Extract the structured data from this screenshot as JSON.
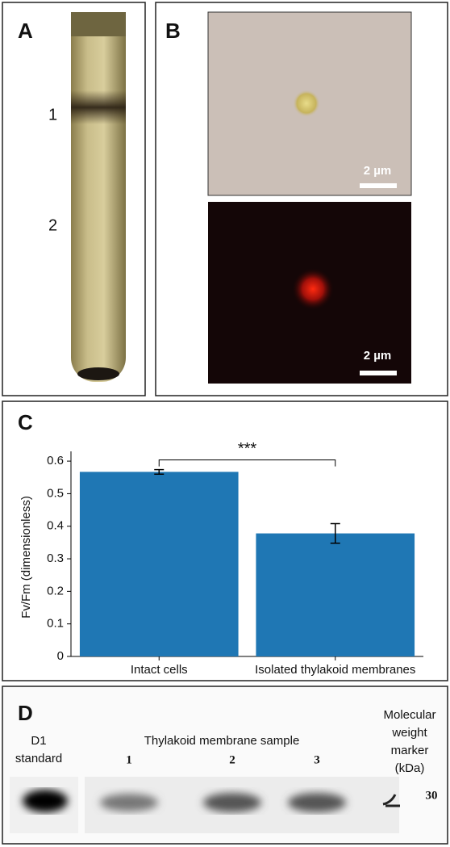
{
  "panels": {
    "a": {
      "letter": "A",
      "bands": [
        "1",
        "2"
      ]
    },
    "b": {
      "letter": "B",
      "scale_top": "2 µm",
      "scale_bottom": "2 µm"
    },
    "c": {
      "letter": "C"
    },
    "d": {
      "letter": "D",
      "standard": [
        "D1",
        "standard"
      ],
      "sample_title": "Thylakoid membrane sample",
      "lanes": [
        "1",
        "2",
        "3"
      ],
      "marker": [
        "Molecular",
        "weight",
        "marker",
        "(kDa)"
      ],
      "marker_size": "30"
    }
  },
  "chart_data": {
    "type": "bar",
    "y_label": "Fv/Fm (dimensionless)",
    "categories": [
      "Intact cells",
      "Isolated thylakoid membranes"
    ],
    "values": [
      0.567,
      0.378
    ],
    "errors": [
      0.007,
      0.03
    ],
    "color": "#1f77b4",
    "annotation": "***",
    "ylim": [
      0,
      0.63
    ],
    "yticks": [
      0,
      0.1,
      0.2,
      0.3,
      0.4,
      0.5,
      0.6
    ]
  }
}
